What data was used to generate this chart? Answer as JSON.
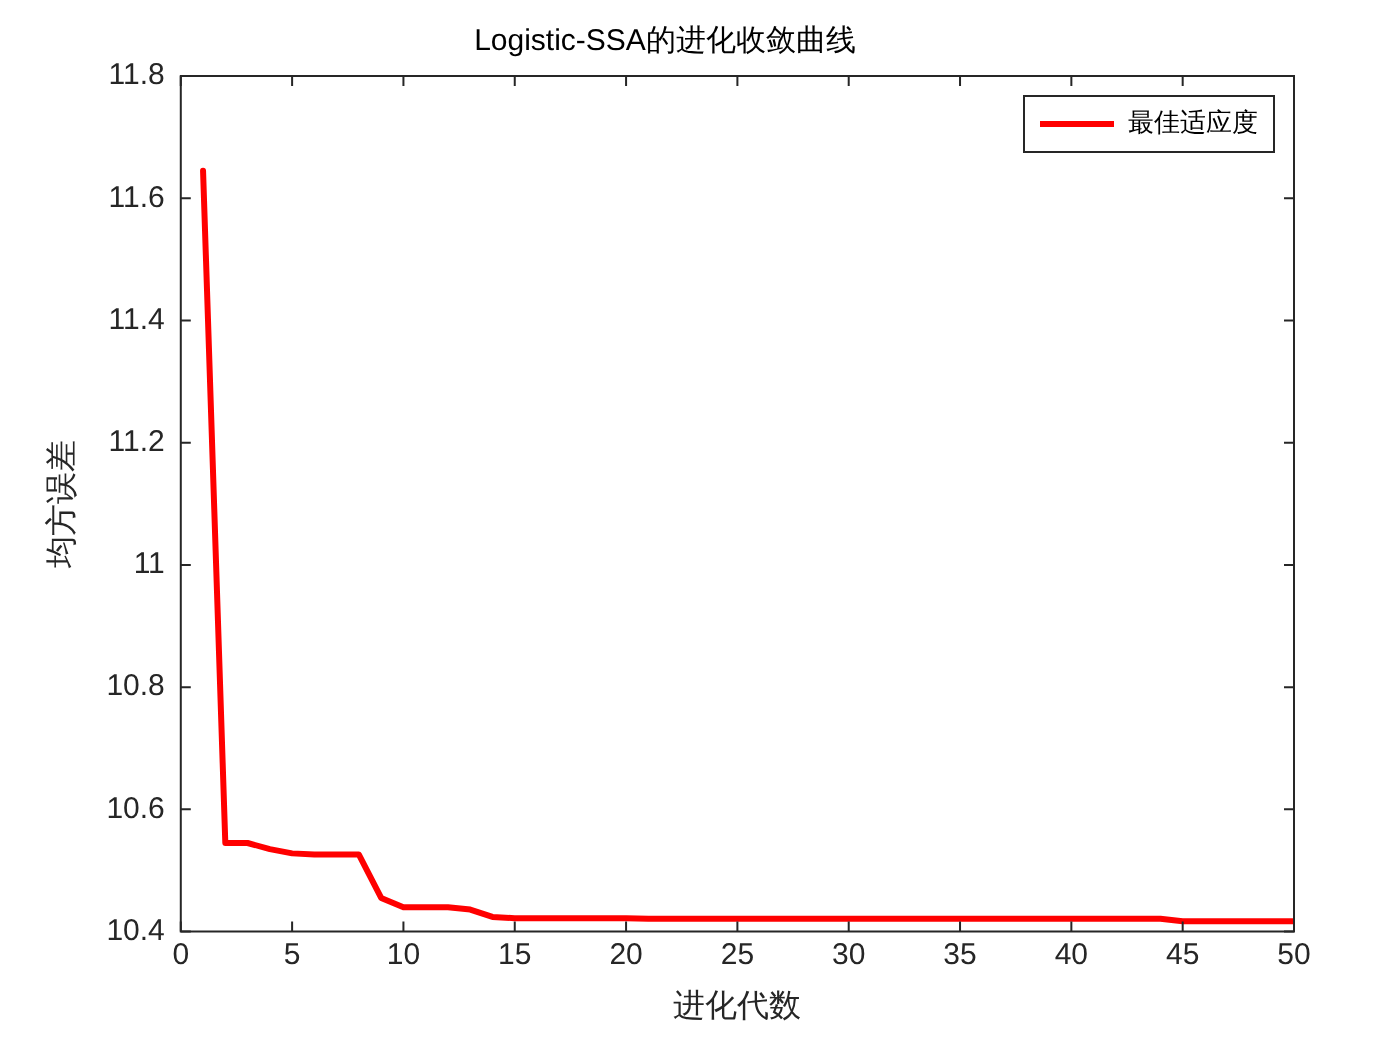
{
  "chart_data": {
    "type": "line",
    "title": "Logistic-SSA的进化收敛曲线",
    "xlabel": "进化代数",
    "ylabel": "均方误差",
    "x": [
      1,
      2,
      3,
      4,
      5,
      6,
      7,
      8,
      9,
      10,
      11,
      12,
      13,
      14,
      15,
      16,
      17,
      18,
      19,
      20,
      21,
      22,
      23,
      24,
      25,
      26,
      27,
      28,
      29,
      30,
      31,
      32,
      33,
      34,
      35,
      36,
      37,
      38,
      39,
      40,
      41,
      42,
      43,
      44,
      45,
      46,
      47,
      48,
      49,
      50
    ],
    "series": [
      {
        "name": "最佳适应度",
        "color": "#ff0000",
        "values": [
          11.645,
          10.545,
          10.545,
          10.535,
          10.528,
          10.526,
          10.526,
          10.526,
          10.455,
          10.44,
          10.44,
          10.44,
          10.436,
          10.424,
          10.422,
          10.422,
          10.422,
          10.422,
          10.422,
          10.422,
          10.421,
          10.421,
          10.421,
          10.421,
          10.421,
          10.421,
          10.421,
          10.421,
          10.421,
          10.421,
          10.421,
          10.421,
          10.421,
          10.421,
          10.421,
          10.421,
          10.421,
          10.421,
          10.421,
          10.421,
          10.421,
          10.421,
          10.421,
          10.421,
          10.417,
          10.417,
          10.417,
          10.417,
          10.417,
          10.417
        ]
      }
    ],
    "xlim": [
      0,
      50
    ],
    "xticks": [
      0,
      5,
      10,
      15,
      20,
      25,
      30,
      35,
      40,
      45,
      50
    ],
    "ylim": [
      10.4,
      11.8
    ],
    "yticks": [
      10.4,
      10.6,
      10.8,
      11,
      11.2,
      11.4,
      11.6,
      11.8
    ],
    "legend": "top right",
    "grid": false,
    "marker": "none",
    "line_style": "solid"
  }
}
